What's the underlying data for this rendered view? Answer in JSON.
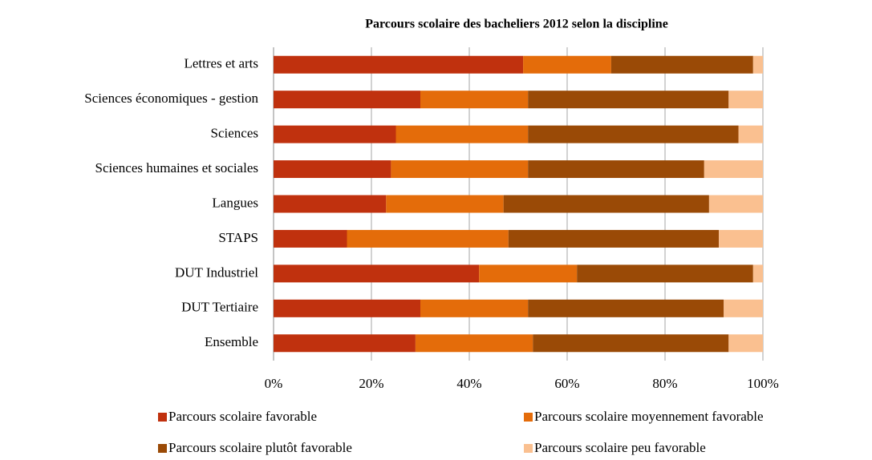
{
  "chart_data": {
    "type": "stacked-bar-horizontal",
    "title": "Parcours scolaire des bacheliers 2012 selon la discipline",
    "categories": [
      "Lettres et arts",
      "Sciences économiques - gestion",
      "Sciences",
      "Sciences humaines et sociales",
      "Langues",
      "STAPS",
      "DUT Industriel",
      "DUT Tertiaire",
      "Ensemble"
    ],
    "series": [
      {
        "name": "Parcours scolaire favorable",
        "color": "#c0310e",
        "values": [
          51,
          30,
          25,
          24,
          23,
          15,
          42,
          30,
          29
        ]
      },
      {
        "name": "Parcours scolaire moyennement favorable",
        "color": "#e46c0a",
        "values": [
          18,
          22,
          27,
          28,
          24,
          33,
          20,
          22,
          24
        ]
      },
      {
        "name": "Parcours scolaire plutôt favorable",
        "color": "#9a4a06",
        "values": [
          29,
          41,
          43,
          36,
          42,
          43,
          36,
          40,
          40
        ]
      },
      {
        "name": "Parcours scolaire peu favorable",
        "color": "#fac090",
        "values": [
          2,
          7,
          5,
          12,
          11,
          9,
          2,
          8,
          7
        ]
      }
    ],
    "xlim": [
      0,
      100
    ],
    "xticks": [
      {
        "value": 0,
        "label": "0%"
      },
      {
        "value": 20,
        "label": "20%"
      },
      {
        "value": 40,
        "label": "40%"
      },
      {
        "value": 60,
        "label": "60%"
      },
      {
        "value": 80,
        "label": "80%"
      },
      {
        "value": 100,
        "label": "100%"
      }
    ],
    "grid": true,
    "legend": "bottom"
  }
}
